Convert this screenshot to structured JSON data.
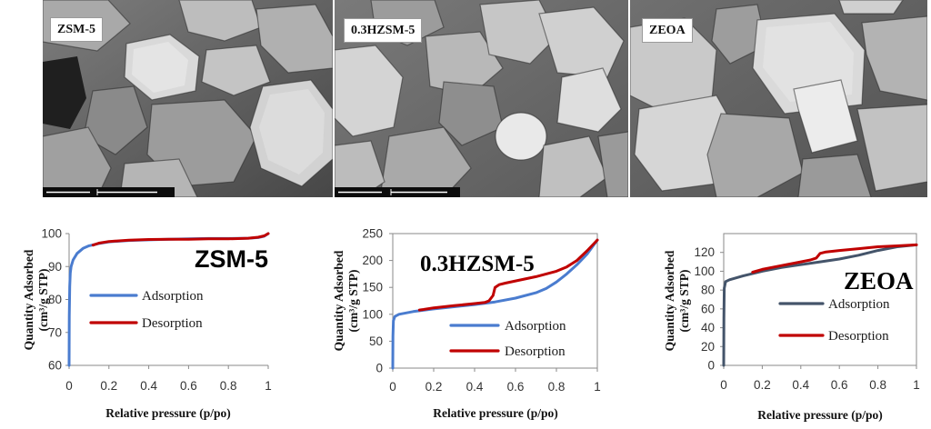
{
  "panels": [
    {
      "label": "ZSM-5"
    },
    {
      "label": "0.3HZSM-5"
    },
    {
      "label": "ZEOA"
    }
  ],
  "chart_data": [
    {
      "type": "line",
      "title": "ZSM-5",
      "xlabel": "Relative pressure (p/po)",
      "ylabel": [
        "Quantity Adsorbed",
        "(cm³/g STP)"
      ],
      "xlim": [
        0,
        1
      ],
      "ylim": [
        60,
        100
      ],
      "xticks": [
        0,
        0.2,
        0.4,
        0.6,
        0.8,
        1
      ],
      "yticks": [
        60,
        70,
        80,
        90,
        100
      ],
      "grid": false,
      "legend": "center-left",
      "series": [
        {
          "name": "Adsorption",
          "color": "#4a7ccf",
          "points": [
            [
              0,
              60
            ],
            [
              0.001,
              75
            ],
            [
              0.003,
              84
            ],
            [
              0.006,
              88
            ],
            [
              0.01,
              90
            ],
            [
              0.02,
              92
            ],
            [
              0.04,
              94
            ],
            [
              0.07,
              95.5
            ],
            [
              0.1,
              96.3
            ],
            [
              0.15,
              97
            ],
            [
              0.2,
              97.5
            ],
            [
              0.3,
              97.9
            ],
            [
              0.4,
              98.1
            ],
            [
              0.5,
              98.3
            ],
            [
              0.6,
              98.4
            ],
            [
              0.7,
              98.5
            ],
            [
              0.8,
              98.5
            ],
            [
              0.9,
              98.6
            ],
            [
              0.95,
              98.8
            ],
            [
              0.98,
              99.2
            ],
            [
              1,
              100
            ]
          ]
        },
        {
          "name": "Desorption",
          "color": "#c00000",
          "points": [
            [
              1,
              100
            ],
            [
              0.98,
              99.3
            ],
            [
              0.95,
              98.9
            ],
            [
              0.9,
              98.6
            ],
            [
              0.8,
              98.4
            ],
            [
              0.7,
              98.4
            ],
            [
              0.6,
              98.3
            ],
            [
              0.5,
              98.3
            ],
            [
              0.4,
              98.2
            ],
            [
              0.3,
              98
            ],
            [
              0.2,
              97.6
            ],
            [
              0.15,
              97.1
            ],
            [
              0.12,
              96.5
            ]
          ]
        }
      ]
    },
    {
      "type": "line",
      "title": "0.3HZSM-5",
      "xlabel": "Relative pressure (p/po)",
      "ylabel": [
        "Quantity Adsorbed",
        "(cm³/g STP)"
      ],
      "xlim": [
        0,
        1
      ],
      "ylim": [
        0,
        250
      ],
      "xticks": [
        0,
        0.2,
        0.4,
        0.6,
        0.8,
        1
      ],
      "yticks": [
        0,
        50,
        100,
        150,
        200,
        250
      ],
      "grid": false,
      "legend": "bottom-right",
      "series": [
        {
          "name": "Adsorption",
          "color": "#4a7ccf",
          "points": [
            [
              0,
              0
            ],
            [
              0.001,
              60
            ],
            [
              0.003,
              88
            ],
            [
              0.01,
              96
            ],
            [
              0.03,
              100
            ],
            [
              0.1,
              105
            ],
            [
              0.2,
              110
            ],
            [
              0.3,
              114
            ],
            [
              0.4,
              118
            ],
            [
              0.5,
              123
            ],
            [
              0.6,
              130
            ],
            [
              0.7,
              140
            ],
            [
              0.75,
              148
            ],
            [
              0.8,
              160
            ],
            [
              0.85,
              175
            ],
            [
              0.9,
              192
            ],
            [
              0.95,
              212
            ],
            [
              1,
              238
            ]
          ]
        },
        {
          "name": "Desorption",
          "color": "#c00000",
          "points": [
            [
              1,
              238
            ],
            [
              0.95,
              218
            ],
            [
              0.9,
              200
            ],
            [
              0.85,
              188
            ],
            [
              0.8,
              180
            ],
            [
              0.7,
              170
            ],
            [
              0.6,
              162
            ],
            [
              0.55,
              158
            ],
            [
              0.52,
              155
            ],
            [
              0.5,
              150
            ],
            [
              0.49,
              135
            ],
            [
              0.47,
              125
            ],
            [
              0.45,
              122
            ],
            [
              0.4,
              120
            ],
            [
              0.3,
              116
            ],
            [
              0.2,
              112
            ],
            [
              0.15,
              109
            ],
            [
              0.13,
              108
            ]
          ]
        }
      ]
    },
    {
      "type": "line",
      "title": "ZEOA",
      "xlabel": "Relative pressure (p/po)",
      "ylabel": [
        "Quantity Adsorbed",
        "(cm³/g STP)"
      ],
      "xlim": [
        0,
        1
      ],
      "ylim": [
        0,
        140
      ],
      "xticks": [
        0,
        0.2,
        0.4,
        0.6,
        0.8,
        1
      ],
      "yticks": [
        0,
        20,
        40,
        60,
        80,
        100,
        120
      ],
      "grid": false,
      "legend": "center-right",
      "series": [
        {
          "name": "Adsorption",
          "color": "#44546a",
          "points": [
            [
              0,
              0
            ],
            [
              0.001,
              50
            ],
            [
              0.003,
              82
            ],
            [
              0.01,
              89
            ],
            [
              0.03,
              91
            ],
            [
              0.1,
              95
            ],
            [
              0.2,
              100
            ],
            [
              0.3,
              104
            ],
            [
              0.4,
              107
            ],
            [
              0.5,
              110
            ],
            [
              0.6,
              113
            ],
            [
              0.7,
              117
            ],
            [
              0.8,
              122
            ],
            [
              0.9,
              126
            ],
            [
              1,
              128
            ]
          ]
        },
        {
          "name": "Desorption",
          "color": "#c00000",
          "points": [
            [
              1,
              128
            ],
            [
              0.9,
              127
            ],
            [
              0.8,
              126
            ],
            [
              0.7,
              124
            ],
            [
              0.6,
              122
            ],
            [
              0.53,
              120.5
            ],
            [
              0.5,
              119
            ],
            [
              0.48,
              114
            ],
            [
              0.45,
              112
            ],
            [
              0.4,
              110
            ],
            [
              0.3,
              106
            ],
            [
              0.2,
              102
            ],
            [
              0.15,
              99
            ]
          ]
        }
      ]
    }
  ]
}
